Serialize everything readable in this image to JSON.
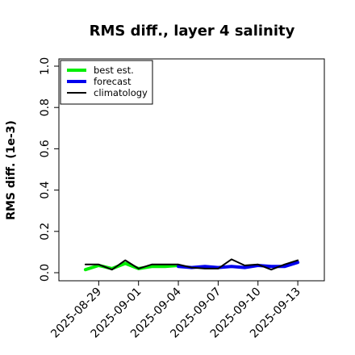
{
  "chart_data": {
    "type": "line",
    "title": "RMS diff., layer 4 salinity",
    "xlabel": "",
    "ylabel": "RMS diff. (1e-3)",
    "ylim": [
      0,
      1
    ],
    "yticks": [
      "0.0",
      "0.2",
      "0.4",
      "0.6",
      "0.8",
      "1.0"
    ],
    "xticks": [
      {
        "label": "2025-08-29",
        "date": "2025-08-29",
        "color": "#000000"
      },
      {
        "label": "2025-09-01",
        "date": "2025-09-01",
        "color": "#000000"
      },
      {
        "label": "2025-09-04",
        "date": "2025-09-04",
        "color": "#228B22"
      },
      {
        "label": "2025-09-07",
        "date": "2025-09-07",
        "color": "#000000"
      },
      {
        "label": "2025-09-10",
        "date": "2025-09-10",
        "color": "#000000"
      },
      {
        "label": "2025-09-13",
        "date": "2025-09-13",
        "color": "#000000"
      }
    ],
    "xlim": [
      "2025-08-26",
      "2025-09-15"
    ],
    "legend_position": "top-left",
    "series": [
      {
        "name": "best est.",
        "color": "#00ee00",
        "x": [
          "2025-08-28",
          "2025-08-29",
          "2025-08-30",
          "2025-08-31",
          "2025-09-01",
          "2025-09-02",
          "2025-09-03",
          "2025-09-04"
        ],
        "values": [
          0.015,
          0.035,
          0.02,
          0.045,
          0.02,
          0.03,
          0.03,
          0.035
        ]
      },
      {
        "name": "forecast",
        "color": "#0000ee",
        "x": [
          "2025-09-04",
          "2025-09-05",
          "2025-09-06",
          "2025-09-07",
          "2025-09-08",
          "2025-09-09",
          "2025-09-10",
          "2025-09-11",
          "2025-09-12",
          "2025-09-13"
        ],
        "values": [
          0.03,
          0.025,
          0.03,
          0.025,
          0.03,
          0.025,
          0.035,
          0.03,
          0.03,
          0.05
        ]
      },
      {
        "name": "climatology",
        "color": "#000000",
        "x": [
          "2025-08-28",
          "2025-08-29",
          "2025-08-30",
          "2025-08-31",
          "2025-09-01",
          "2025-09-02",
          "2025-09-03",
          "2025-09-04",
          "2025-09-05",
          "2025-09-06",
          "2025-09-07",
          "2025-09-08",
          "2025-09-09",
          "2025-09-10",
          "2025-09-11",
          "2025-09-12",
          "2025-09-13"
        ],
        "values": [
          0.04,
          0.04,
          0.015,
          0.06,
          0.02,
          0.04,
          0.04,
          0.04,
          0.025,
          0.02,
          0.02,
          0.065,
          0.035,
          0.04,
          0.015,
          0.04,
          0.06
        ]
      }
    ]
  }
}
